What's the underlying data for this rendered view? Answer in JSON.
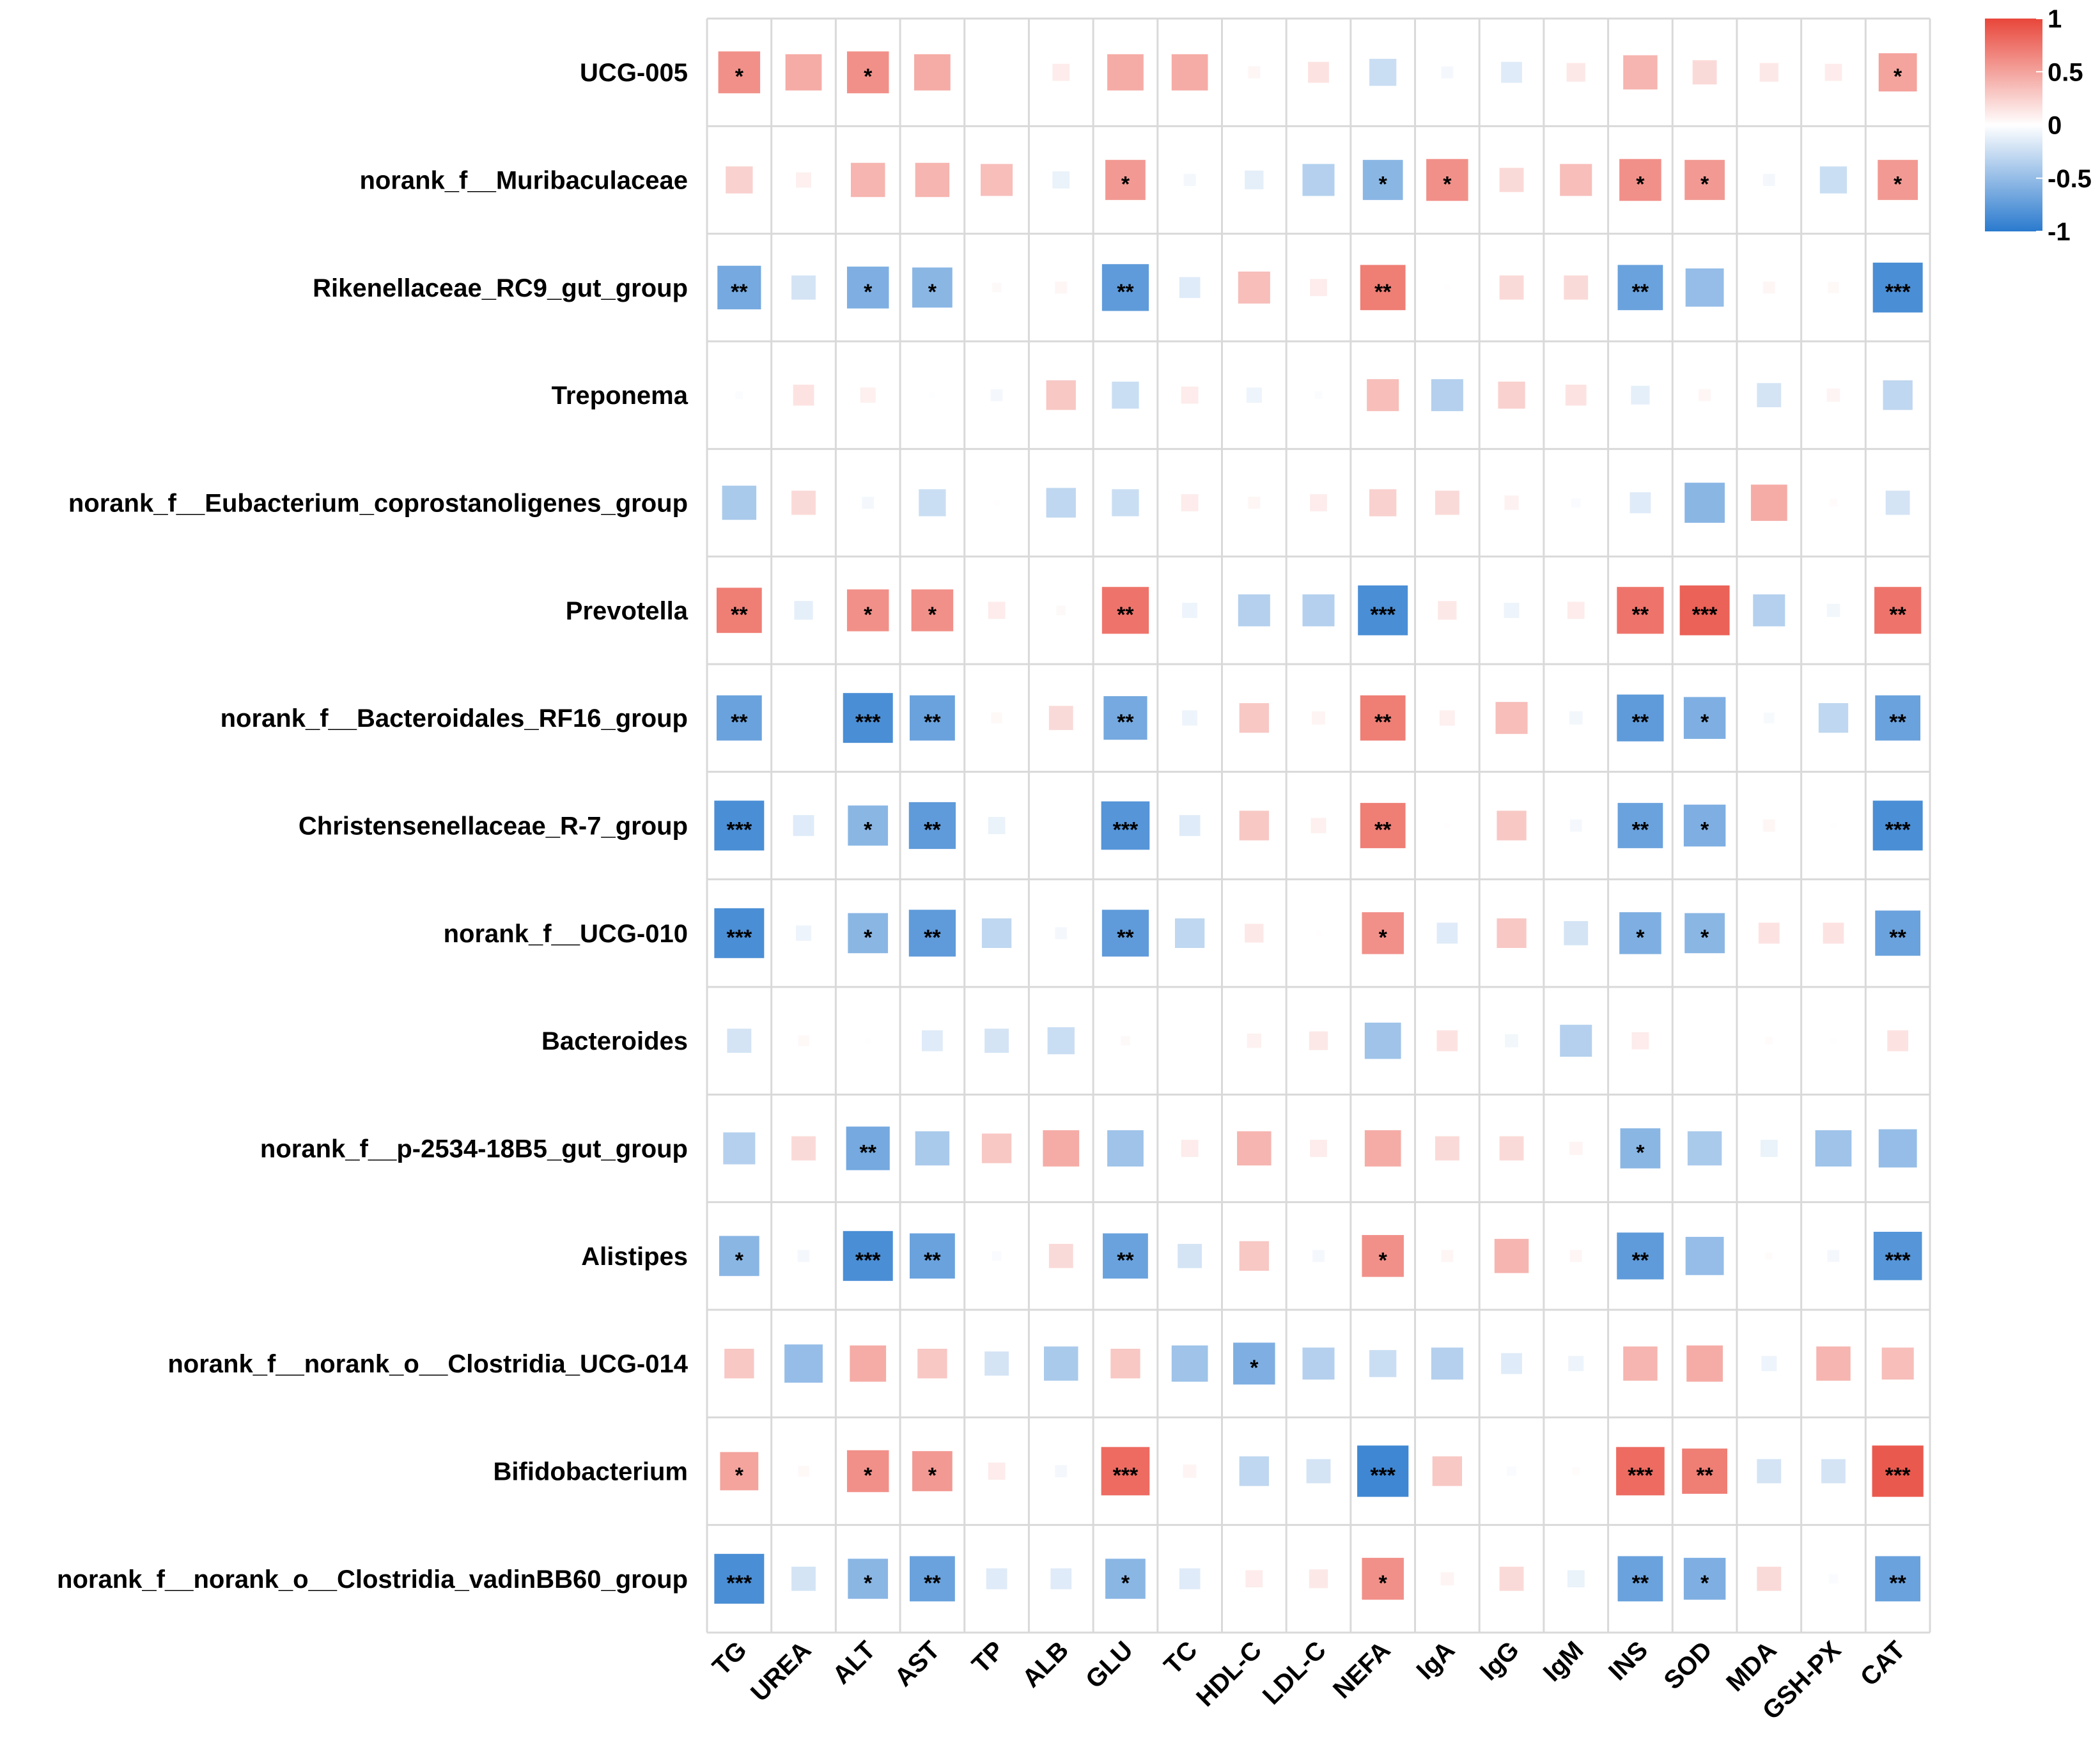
{
  "chart_data": {
    "type": "heatmap",
    "x": [
      "TG",
      "UREA",
      "ALT",
      "AST",
      "TP",
      "ALB",
      "GLU",
      "TC",
      "HDL-C",
      "LDL-C",
      "NEFA",
      "IgA",
      "IgG",
      "IgM",
      "INS",
      "SOD",
      "MDA",
      "GSH-PX",
      "CAT"
    ],
    "y": [
      "UCG-005",
      "norank_f__Muribaculaceae",
      "Rikenellaceae_RC9_gut_group",
      "Treponema",
      "norank_f__Eubacterium_coprostanoligenes_group",
      "Prevotella",
      "norank_f__Bacteroidales_RF16_group",
      "Christensenellaceae_R-7_group",
      "norank_f__UCG-010",
      "Bacteroides",
      "norank_f__p-2534-18B5_gut_group",
      "Alistipes",
      "norank_f__norank_o__Clostridia_UCG-014",
      "Bifidobacterium",
      "norank_f__norank_o__Clostridia_vadinBB60_group"
    ],
    "values": [
      [
        0.6,
        0.45,
        0.6,
        0.45,
        0,
        0.1,
        0.45,
        0.45,
        0.05,
        0.15,
        -0.25,
        -0.05,
        -0.15,
        0.12,
        0.4,
        0.2,
        0.12,
        0.1,
        0.5
      ],
      [
        0.25,
        0.08,
        0.4,
        0.4,
        0.35,
        -0.1,
        0.55,
        -0.05,
        -0.12,
        -0.35,
        -0.55,
        0.6,
        0.2,
        0.35,
        0.6,
        0.55,
        -0.05,
        -0.25,
        0.55
      ],
      [
        -0.65,
        -0.2,
        -0.6,
        -0.55,
        0.03,
        0.05,
        -0.75,
        -0.15,
        0.35,
        0.1,
        0.7,
        0.01,
        0.2,
        0.2,
        -0.7,
        -0.5,
        0.05,
        0.04,
        -0.85
      ],
      [
        -0.02,
        0.15,
        0.08,
        -0.01,
        -0.05,
        0.3,
        -0.25,
        0.1,
        -0.08,
        -0.02,
        0.35,
        -0.35,
        0.25,
        0.15,
        -0.12,
        0.05,
        -0.2,
        0.06,
        -0.3
      ],
      [
        -0.4,
        0.2,
        -0.05,
        -0.25,
        0.01,
        -0.3,
        -0.25,
        0.1,
        0.05,
        0.1,
        0.25,
        0.2,
        0.07,
        -0.03,
        -0.15,
        -0.55,
        0.45,
        0.02,
        -0.2
      ],
      [
        0.7,
        -0.12,
        0.6,
        0.6,
        0.1,
        0.03,
        0.75,
        -0.08,
        -0.35,
        -0.35,
        -0.85,
        0.12,
        -0.08,
        0.1,
        0.75,
        0.85,
        -0.35,
        -0.06,
        0.75
      ],
      [
        -0.7,
        0,
        -0.85,
        -0.7,
        0.04,
        0.2,
        -0.65,
        -0.08,
        0.3,
        0.06,
        0.7,
        0.08,
        0.35,
        -0.06,
        -0.75,
        -0.6,
        -0.04,
        -0.3,
        -0.7
      ],
      [
        -0.85,
        -0.15,
        -0.55,
        -0.75,
        -0.1,
        0,
        -0.8,
        -0.15,
        0.3,
        0.08,
        0.7,
        0.01,
        0.3,
        -0.05,
        -0.7,
        -0.6,
        0.05,
        0.01,
        -0.85
      ],
      [
        -0.85,
        -0.08,
        -0.55,
        -0.75,
        -0.3,
        -0.05,
        -0.75,
        -0.3,
        0.12,
        0.01,
        0.6,
        -0.15,
        0.3,
        -0.2,
        -0.6,
        -0.55,
        0.15,
        0.15,
        -0.7
      ],
      [
        -0.2,
        0.04,
        -0.01,
        -0.15,
        -0.2,
        -0.25,
        0.03,
        0,
        0.07,
        0.12,
        -0.45,
        0.15,
        -0.06,
        -0.35,
        0.1,
        0,
        0.02,
        0.01,
        0.15
      ],
      [
        -0.35,
        0.2,
        -0.65,
        -0.4,
        0.3,
        0.45,
        -0.45,
        0.1,
        0.4,
        0.1,
        0.45,
        0.2,
        0.2,
        0.06,
        -0.55,
        -0.4,
        -0.1,
        -0.45,
        -0.5
      ],
      [
        -0.55,
        -0.05,
        -0.85,
        -0.7,
        -0.03,
        0.2,
        -0.7,
        -0.2,
        0.3,
        -0.05,
        0.6,
        0.05,
        0.4,
        0.05,
        -0.75,
        -0.5,
        0.02,
        -0.05,
        -0.8
      ],
      [
        0.3,
        -0.5,
        0.45,
        0.3,
        -0.2,
        -0.4,
        0.3,
        -0.45,
        -0.6,
        -0.35,
        -0.25,
        -0.35,
        -0.15,
        -0.08,
        0.4,
        0.45,
        -0.08,
        0.4,
        0.35
      ],
      [
        0.5,
        0.04,
        0.6,
        0.55,
        0.1,
        -0.05,
        0.8,
        0.06,
        -0.3,
        -0.2,
        -0.9,
        0.3,
        -0.03,
        0.02,
        0.8,
        0.7,
        -0.2,
        -0.2,
        0.9
      ],
      [
        -0.85,
        -0.2,
        -0.55,
        -0.7,
        -0.15,
        -0.15,
        -0.55,
        -0.15,
        0.1,
        0.12,
        0.6,
        0.06,
        0.2,
        -0.1,
        -0.7,
        -0.6,
        0.2,
        -0.03,
        -0.7
      ]
    ],
    "annotations": [
      [
        "*",
        null,
        "*",
        null,
        null,
        null,
        null,
        null,
        null,
        null,
        null,
        null,
        null,
        null,
        null,
        null,
        null,
        null,
        "*"
      ],
      [
        null,
        null,
        null,
        null,
        null,
        null,
        "*",
        null,
        null,
        null,
        "*",
        "*",
        null,
        null,
        "*",
        "*",
        null,
        null,
        "*"
      ],
      [
        "**",
        null,
        "*",
        "*",
        null,
        null,
        "**",
        null,
        null,
        null,
        "**",
        null,
        null,
        null,
        "**",
        null,
        null,
        null,
        "***"
      ],
      [
        null,
        null,
        null,
        null,
        null,
        null,
        null,
        null,
        null,
        null,
        null,
        null,
        null,
        null,
        null,
        null,
        null,
        null,
        null
      ],
      [
        null,
        null,
        null,
        null,
        null,
        null,
        null,
        null,
        null,
        null,
        null,
        null,
        null,
        null,
        null,
        null,
        null,
        null,
        null
      ],
      [
        "**",
        null,
        "*",
        "*",
        null,
        null,
        "**",
        null,
        null,
        null,
        "***",
        null,
        null,
        null,
        "**",
        "***",
        null,
        null,
        "**"
      ],
      [
        "**",
        null,
        "***",
        "**",
        null,
        null,
        "**",
        null,
        null,
        null,
        "**",
        null,
        null,
        null,
        "**",
        "*",
        null,
        null,
        "**"
      ],
      [
        "***",
        null,
        "*",
        "**",
        null,
        null,
        "***",
        null,
        null,
        null,
        "**",
        null,
        null,
        null,
        "**",
        "*",
        null,
        null,
        "***"
      ],
      [
        "***",
        null,
        "*",
        "**",
        null,
        null,
        "**",
        null,
        null,
        null,
        "*",
        null,
        null,
        null,
        "*",
        "*",
        null,
        null,
        "**"
      ],
      [
        null,
        null,
        null,
        null,
        null,
        null,
        null,
        null,
        null,
        null,
        null,
        null,
        null,
        null,
        null,
        null,
        null,
        null,
        null
      ],
      [
        null,
        null,
        "**",
        null,
        null,
        null,
        null,
        null,
        null,
        null,
        null,
        null,
        null,
        null,
        "*",
        null,
        null,
        null,
        null
      ],
      [
        "*",
        null,
        "***",
        "**",
        null,
        null,
        "**",
        null,
        null,
        null,
        "*",
        null,
        null,
        null,
        "**",
        null,
        null,
        null,
        "***"
      ],
      [
        null,
        null,
        null,
        null,
        null,
        null,
        null,
        null,
        "*",
        null,
        null,
        null,
        null,
        null,
        null,
        null,
        null,
        null,
        null
      ],
      [
        "*",
        null,
        "*",
        "*",
        null,
        null,
        "***",
        null,
        null,
        null,
        "***",
        null,
        null,
        null,
        "***",
        "**",
        null,
        null,
        "***"
      ],
      [
        "***",
        null,
        "*",
        "**",
        null,
        null,
        "*",
        null,
        null,
        null,
        "*",
        null,
        null,
        null,
        "**",
        "*",
        null,
        null,
        "**"
      ]
    ],
    "clim": [
      -1,
      1
    ],
    "cticks": [
      1,
      0.5,
      0,
      -0.5,
      -1
    ],
    "colormap": [
      "#2a7ace",
      "#ffffff",
      "#e8463a"
    ],
    "grid_color": "#d9d9d9"
  }
}
